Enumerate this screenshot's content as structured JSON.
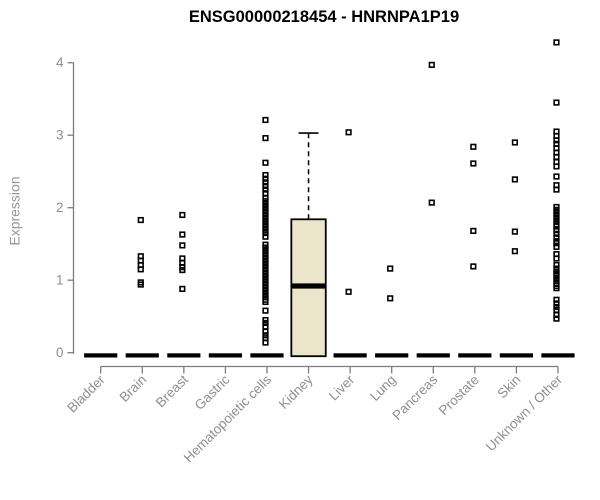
{
  "chart_data": {
    "type": "boxplot",
    "title": "ENSG00000218454 - HNRNPA1P19",
    "ylabel": "Expression",
    "xlabel": "",
    "ylim": [
      0,
      4.3
    ],
    "yticks": [
      0,
      1,
      2,
      3,
      4
    ],
    "grid": false,
    "legend": "none",
    "colors": {
      "title": "#000000",
      "axis_line": "#7d7d7d",
      "tick_label": "#8f8f8f",
      "point": "#000000",
      "zero_bar": "#000000",
      "box_fill": "#EBE6CB",
      "box_stroke": "#000000",
      "median": "#000000"
    },
    "categories": [
      "Bladder",
      "Brain",
      "Breast",
      "Gastric",
      "Hematopoietic cells",
      "Kidney",
      "Liver",
      "Lung",
      "Pancreas",
      "Prostate",
      "Skin",
      "Unknown / Other"
    ],
    "groups": [
      {
        "name": "Bladder",
        "median": 0,
        "points": []
      },
      {
        "name": "Brain",
        "median": 0,
        "points": [
          1.83,
          1.33,
          1.27,
          1.21,
          1.15,
          0.97,
          0.94
        ]
      },
      {
        "name": "Breast",
        "median": 0,
        "points": [
          1.9,
          1.63,
          1.48,
          1.3,
          1.24,
          1.18,
          1.14,
          0.88
        ]
      },
      {
        "name": "Gastric",
        "median": 0,
        "points": []
      },
      {
        "name": "Hematopoietic cells",
        "median": 0,
        "points": [
          3.21,
          2.96,
          2.62,
          2.45,
          2.4,
          2.35,
          2.3,
          2.25,
          2.2,
          2.13,
          2.09,
          2.05,
          2.01,
          1.97,
          1.93,
          1.89,
          1.85,
          1.81,
          1.77,
          1.73,
          1.69,
          1.65,
          1.6,
          1.49,
          1.45,
          1.41,
          1.37,
          1.33,
          1.29,
          1.25,
          1.21,
          1.17,
          1.13,
          1.09,
          1.05,
          1.01,
          0.97,
          0.93,
          0.89,
          0.85,
          0.81,
          0.77,
          0.73,
          0.7,
          0.58,
          0.45,
          0.41,
          0.36,
          0.29,
          0.24,
          0.2,
          0.14
        ]
      },
      {
        "name": "Kidney",
        "box": {
          "q1": 0,
          "median": 0.92,
          "q3": 1.84,
          "whisker_high": 3.03,
          "whisker_low": 0
        },
        "points": []
      },
      {
        "name": "Liver",
        "median": 0,
        "points": [
          3.04,
          0.84
        ]
      },
      {
        "name": "Lung",
        "median": 0,
        "points": [
          1.16,
          0.75
        ]
      },
      {
        "name": "Pancreas",
        "median": 0,
        "points": [
          3.97,
          2.07
        ]
      },
      {
        "name": "Prostate",
        "median": 0,
        "points": [
          2.84,
          2.61,
          1.68,
          1.19
        ]
      },
      {
        "name": "Skin",
        "median": 0,
        "points": [
          2.9,
          2.39,
          1.67,
          1.4
        ]
      },
      {
        "name": "Unknown / Other",
        "median": 0,
        "points": [
          4.28,
          3.45,
          3.05,
          2.99,
          2.93,
          2.88,
          2.82,
          2.76,
          2.7,
          2.63,
          2.57,
          2.43,
          2.31,
          2.25,
          2.01,
          1.97,
          1.93,
          1.89,
          1.85,
          1.81,
          1.77,
          1.74,
          1.69,
          1.64,
          1.59,
          1.54,
          1.51,
          1.46,
          1.36,
          1.3,
          1.21,
          1.16,
          1.12,
          1.09,
          1.07,
          1.03,
          0.99,
          0.95,
          0.92,
          0.89,
          0.73,
          0.68,
          0.63,
          0.59,
          0.52,
          0.47
        ]
      }
    ]
  }
}
